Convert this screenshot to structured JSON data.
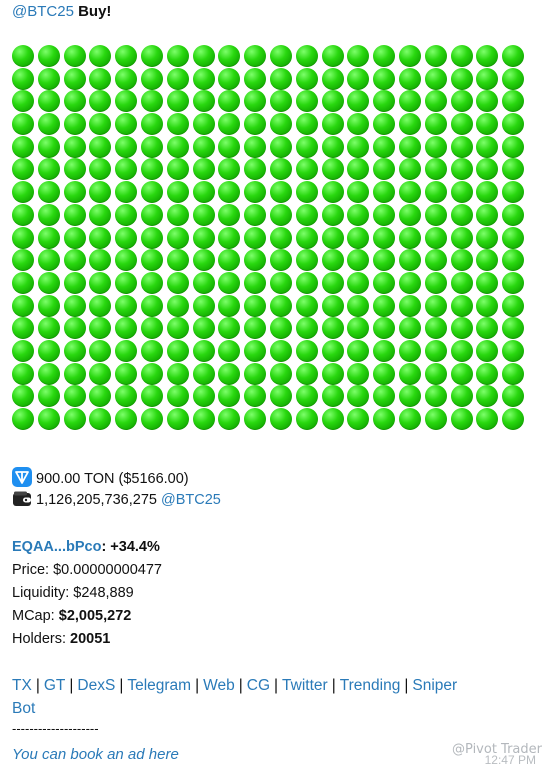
{
  "header": {
    "handle": "@BTC25",
    "action": "Buy!"
  },
  "dot_grid": {
    "columns": 20,
    "rows": 17,
    "color": "#22cc11"
  },
  "trade": {
    "ton_amount": "900.00 TON ($5166.00)",
    "token_amount": "1,126,205,736,275",
    "token_handle": "@BTC25"
  },
  "stats": {
    "address": "EQAA...bPco",
    "change": ": +34.4%",
    "price_label": "Price: ",
    "price_value": "$0.00000000477",
    "liquidity_label": "Liquidity: ",
    "liquidity_value": "$248,889",
    "mcap_label": "MCap: ",
    "mcap_value": "$2,005,272",
    "holders_label": "Holders: ",
    "holders_value": "20051"
  },
  "links": [
    "TX",
    "GT",
    "DexS",
    "Telegram",
    "Web",
    "CG",
    "Twitter",
    "Trending",
    "Sniper"
  ],
  "links_overflow": "Bot",
  "divider": "--------------------",
  "ad_text": "You can book an ad here",
  "watermark": "@Pivot Trader",
  "time": "12:47 PM",
  "colors": {
    "link": "#2a7ab8",
    "dot": "#22cc11",
    "ton_icon": "#1f8ff0"
  },
  "icons": [
    "ton-icon",
    "wallet-icon"
  ]
}
